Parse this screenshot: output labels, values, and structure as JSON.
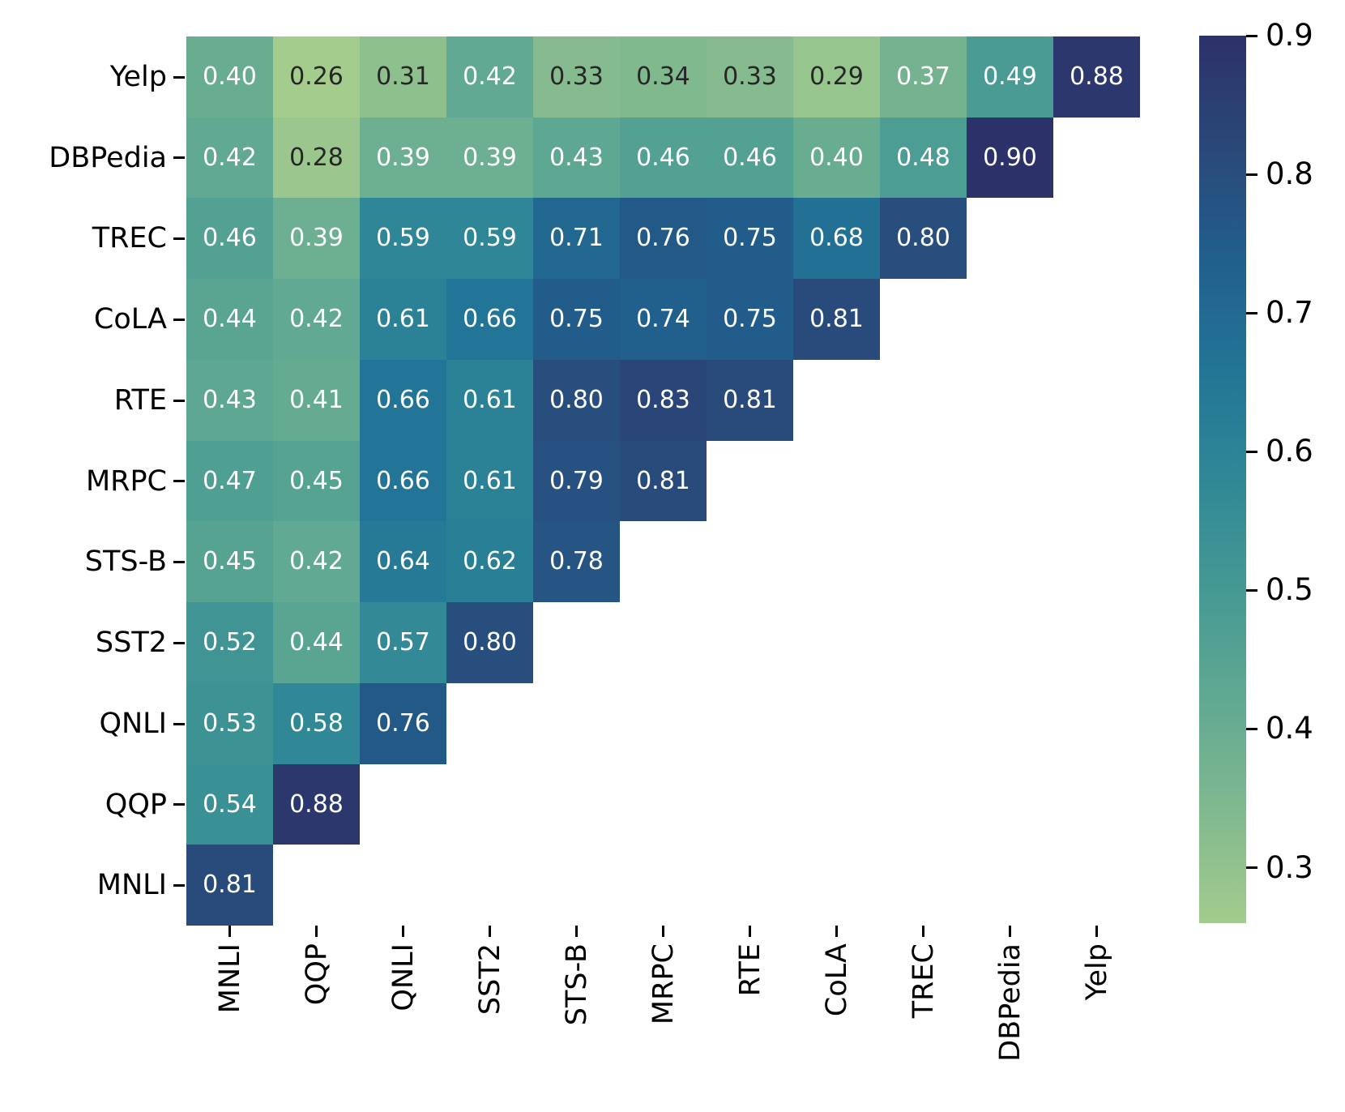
{
  "chart_data": {
    "type": "heatmap",
    "title": "",
    "xlabel": "",
    "ylabel": "",
    "rows": [
      "Yelp",
      "DBPedia",
      "TREC",
      "CoLA",
      "RTE",
      "MRPC",
      "STS-B",
      "SST2",
      "QNLI",
      "QQP",
      "MNLI"
    ],
    "cols": [
      "MNLI",
      "QQP",
      "QNLI",
      "SST2",
      "STS-B",
      "MRPC",
      "RTE",
      "CoLA",
      "TREC",
      "DBPedia",
      "Yelp"
    ],
    "values": [
      [
        0.4,
        0.26,
        0.31,
        0.42,
        0.33,
        0.34,
        0.33,
        0.29,
        0.37,
        0.49,
        0.88
      ],
      [
        0.42,
        0.28,
        0.39,
        0.39,
        0.43,
        0.46,
        0.46,
        0.4,
        0.48,
        0.9,
        null
      ],
      [
        0.46,
        0.39,
        0.59,
        0.59,
        0.71,
        0.76,
        0.75,
        0.68,
        0.8,
        null,
        null
      ],
      [
        0.44,
        0.42,
        0.61,
        0.66,
        0.75,
        0.74,
        0.75,
        0.81,
        null,
        null,
        null
      ],
      [
        0.43,
        0.41,
        0.66,
        0.61,
        0.8,
        0.83,
        0.81,
        null,
        null,
        null,
        null
      ],
      [
        0.47,
        0.45,
        0.66,
        0.61,
        0.79,
        0.81,
        null,
        null,
        null,
        null,
        null
      ],
      [
        0.45,
        0.42,
        0.64,
        0.62,
        0.78,
        null,
        null,
        null,
        null,
        null,
        null
      ],
      [
        0.52,
        0.44,
        0.57,
        0.8,
        null,
        null,
        null,
        null,
        null,
        null,
        null
      ],
      [
        0.53,
        0.58,
        0.76,
        null,
        null,
        null,
        null,
        null,
        null,
        null,
        null
      ],
      [
        0.54,
        0.88,
        null,
        null,
        null,
        null,
        null,
        null,
        null,
        null,
        null
      ],
      [
        0.81,
        null,
        null,
        null,
        null,
        null,
        null,
        null,
        null,
        null,
        null
      ]
    ],
    "annotation_decimals": 2,
    "vmin": 0.26,
    "vmax": 0.9,
    "legend_position": "right",
    "grid": false,
    "colorbar": {
      "tick_labels": [
        "0.9",
        "0.8",
        "0.7",
        "0.6",
        "0.5",
        "0.4",
        "0.3"
      ],
      "tick_values": [
        0.9,
        0.8,
        0.7,
        0.6,
        0.5,
        0.4,
        0.3
      ]
    },
    "colormap": {
      "name": "crest",
      "anchors": [
        {
          "t": 0.0,
          "color": "#a3cc8d"
        },
        {
          "t": 0.125,
          "color": "#81b98f"
        },
        {
          "t": 0.25,
          "color": "#61a992"
        },
        {
          "t": 0.375,
          "color": "#459993"
        },
        {
          "t": 0.5,
          "color": "#308896"
        },
        {
          "t": 0.625,
          "color": "#227596"
        },
        {
          "t": 0.75,
          "color": "#215f8c"
        },
        {
          "t": 0.875,
          "color": "#2a4879"
        },
        {
          "t": 1.0,
          "color": "#2c3169"
        }
      ]
    },
    "annotation_text_colors": {
      "light": "#ffffff",
      "dark": "#262626",
      "white_text_threshold": 0.355
    },
    "axis_color": "#000000",
    "background_color": "#ffffff"
  }
}
